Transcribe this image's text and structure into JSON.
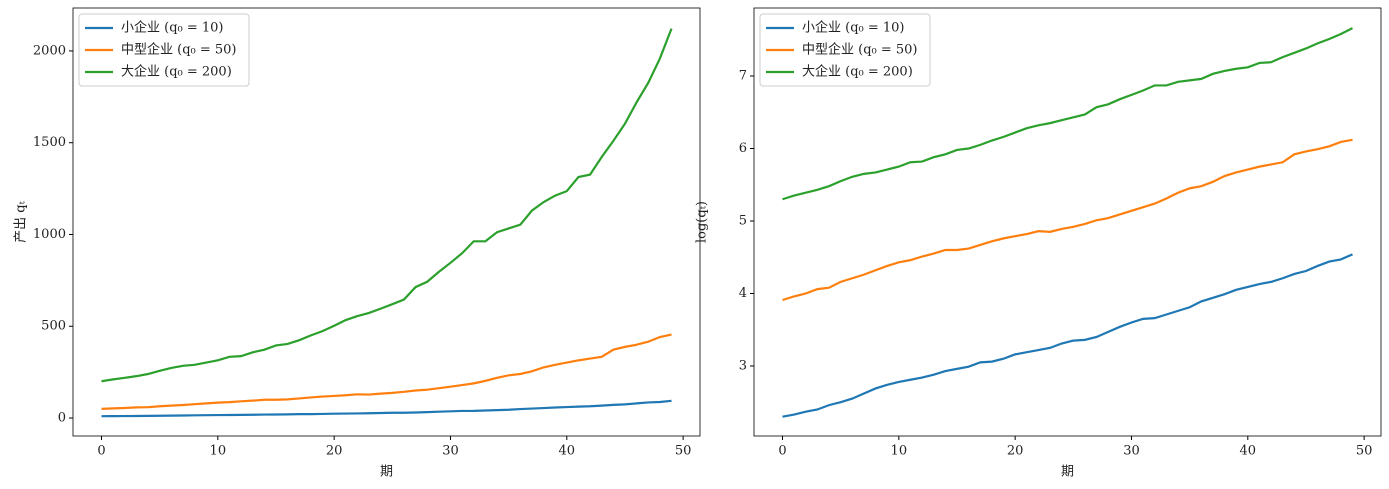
{
  "chart_data": [
    {
      "type": "line",
      "xlabel": "期",
      "ylabel": "产出 qₜ",
      "legend": "upper left",
      "x": [
        0,
        1,
        2,
        3,
        4,
        5,
        6,
        7,
        8,
        9,
        10,
        11,
        12,
        13,
        14,
        15,
        16,
        17,
        18,
        19,
        20,
        21,
        22,
        23,
        24,
        25,
        26,
        27,
        28,
        29,
        30,
        31,
        32,
        33,
        34,
        35,
        36,
        37,
        38,
        39,
        40,
        41,
        42,
        43,
        44,
        45,
        46,
        47,
        48,
        49
      ],
      "xlim": [
        -2.45,
        51.45
      ],
      "xticks": [
        0,
        10,
        20,
        30,
        40,
        50
      ],
      "ylim": [
        -98,
        2234
      ],
      "yticks": [
        0,
        500,
        1000,
        1500,
        2000
      ],
      "series": [
        {
          "name": "小企业 (q₀ = 10)",
          "color": "#1f77b4",
          "values": [
            10.0,
            10.3,
            10.7,
            11.0,
            11.7,
            12.2,
            12.8,
            13.7,
            14.7,
            15.5,
            16.1,
            16.6,
            17.1,
            17.8,
            18.7,
            19.3,
            19.9,
            21.1,
            21.3,
            22.2,
            23.6,
            24.3,
            25.0,
            25.8,
            27.4,
            28.5,
            28.8,
            30.0,
            32.1,
            34.5,
            36.6,
            38.5,
            38.9,
            40.9,
            43.0,
            45.2,
            48.9,
            51.4,
            54.1,
            57.4,
            59.7,
            62.2,
            64.1,
            67.4,
            71.5,
            74.4,
            79.8,
            84.8,
            87.4,
            93.7
          ]
        },
        {
          "name": "中型企业 (q₀ = 50)",
          "color": "#ff7f0e",
          "values": [
            49.9,
            52.5,
            54.6,
            58.0,
            59.1,
            64.1,
            67.4,
            70.8,
            75.2,
            79.8,
            83.9,
            86.5,
            90.9,
            94.6,
            99.5,
            99.5,
            101.5,
            106.7,
            112.2,
            116.8,
            120.3,
            124.0,
            129.0,
            127.7,
            132.9,
            137.0,
            142.6,
            149.9,
            154.5,
            162.4,
            170.7,
            179.5,
            188.7,
            202.4,
            219.2,
            232.8,
            239.8,
            254.7,
            275.9,
            290.0,
            301.9,
            314.2,
            323.8,
            333.6,
            372.4,
            387.6,
            399.4,
            415.7,
            441.4,
            454.9
          ]
        },
        {
          "name": "大企业 (q₀ = 200)",
          "color": "#2ca02c",
          "values": [
            200.3,
            210.6,
            219.2,
            228.1,
            239.8,
            257.2,
            273.1,
            284.3,
            290.0,
            301.9,
            314.2,
            333.6,
            337.0,
            357.8,
            372.4,
            395.4,
            403.4,
            424.1,
            450.3,
            473.4,
            502.7,
            533.8,
            555.6,
            572.5,
            595.9,
            620.1,
            645.5,
            713.4,
            742.4,
            796.3,
            845.6,
            897.8,
            962.9,
            962.9,
            1012.4,
            1032.8,
            1053.6,
            1130.0,
            1176.1,
            1212.0,
            1236.4,
            1312.9,
            1326.1,
            1422.2,
            1510.2,
            1603.6,
            1719.9,
            1826.2,
            1958.6,
            2121.7
          ]
        }
      ]
    },
    {
      "type": "line",
      "xlabel": "期",
      "ylabel": "log(qₜ)",
      "legend": "upper left",
      "x": [
        0,
        1,
        2,
        3,
        4,
        5,
        6,
        7,
        8,
        9,
        10,
        11,
        12,
        13,
        14,
        15,
        16,
        17,
        18,
        19,
        20,
        21,
        22,
        23,
        24,
        25,
        26,
        27,
        28,
        29,
        30,
        31,
        32,
        33,
        34,
        35,
        36,
        37,
        38,
        39,
        40,
        41,
        42,
        43,
        44,
        45,
        46,
        47,
        48,
        49
      ],
      "xlim": [
        -2.45,
        51.45
      ],
      "xticks": [
        0,
        10,
        20,
        30,
        40,
        50
      ],
      "ylim": [
        2.034,
        7.938
      ],
      "yticks": [
        3,
        4,
        5,
        6,
        7
      ],
      "series": [
        {
          "name": "小企业 (q₀ = 10)",
          "color": "#1f77b4",
          "values": [
            2.3,
            2.33,
            2.37,
            2.4,
            2.46,
            2.5,
            2.55,
            2.62,
            2.69,
            2.74,
            2.78,
            2.81,
            2.84,
            2.88,
            2.93,
            2.96,
            2.99,
            3.05,
            3.06,
            3.1,
            3.16,
            3.19,
            3.22,
            3.25,
            3.31,
            3.35,
            3.36,
            3.4,
            3.47,
            3.54,
            3.6,
            3.65,
            3.66,
            3.71,
            3.76,
            3.81,
            3.89,
            3.94,
            3.99,
            4.05,
            4.09,
            4.13,
            4.16,
            4.21,
            4.27,
            4.31,
            4.38,
            4.44,
            4.47,
            4.54
          ]
        },
        {
          "name": "中型企业 (q₀ = 50)",
          "color": "#ff7f0e",
          "values": [
            3.91,
            3.96,
            4.0,
            4.06,
            4.08,
            4.16,
            4.21,
            4.26,
            4.32,
            4.38,
            4.43,
            4.46,
            4.51,
            4.55,
            4.6,
            4.6,
            4.62,
            4.67,
            4.72,
            4.76,
            4.79,
            4.82,
            4.86,
            4.85,
            4.89,
            4.92,
            4.96,
            5.01,
            5.04,
            5.09,
            5.14,
            5.19,
            5.24,
            5.31,
            5.39,
            5.45,
            5.48,
            5.54,
            5.62,
            5.67,
            5.71,
            5.75,
            5.78,
            5.81,
            5.92,
            5.96,
            5.99,
            6.03,
            6.09,
            6.12
          ]
        },
        {
          "name": "大企业 (q₀ = 200)",
          "color": "#2ca02c",
          "values": [
            5.3,
            5.35,
            5.39,
            5.43,
            5.48,
            5.55,
            5.61,
            5.65,
            5.67,
            5.71,
            5.75,
            5.81,
            5.82,
            5.88,
            5.92,
            5.98,
            6.0,
            6.05,
            6.11,
            6.16,
            6.22,
            6.28,
            6.32,
            6.35,
            6.39,
            6.43,
            6.47,
            6.57,
            6.61,
            6.68,
            6.74,
            6.8,
            6.87,
            6.87,
            6.92,
            6.94,
            6.96,
            7.03,
            7.07,
            7.1,
            7.12,
            7.18,
            7.19,
            7.26,
            7.32,
            7.38,
            7.45,
            7.51,
            7.58,
            7.66
          ]
        }
      ]
    }
  ]
}
